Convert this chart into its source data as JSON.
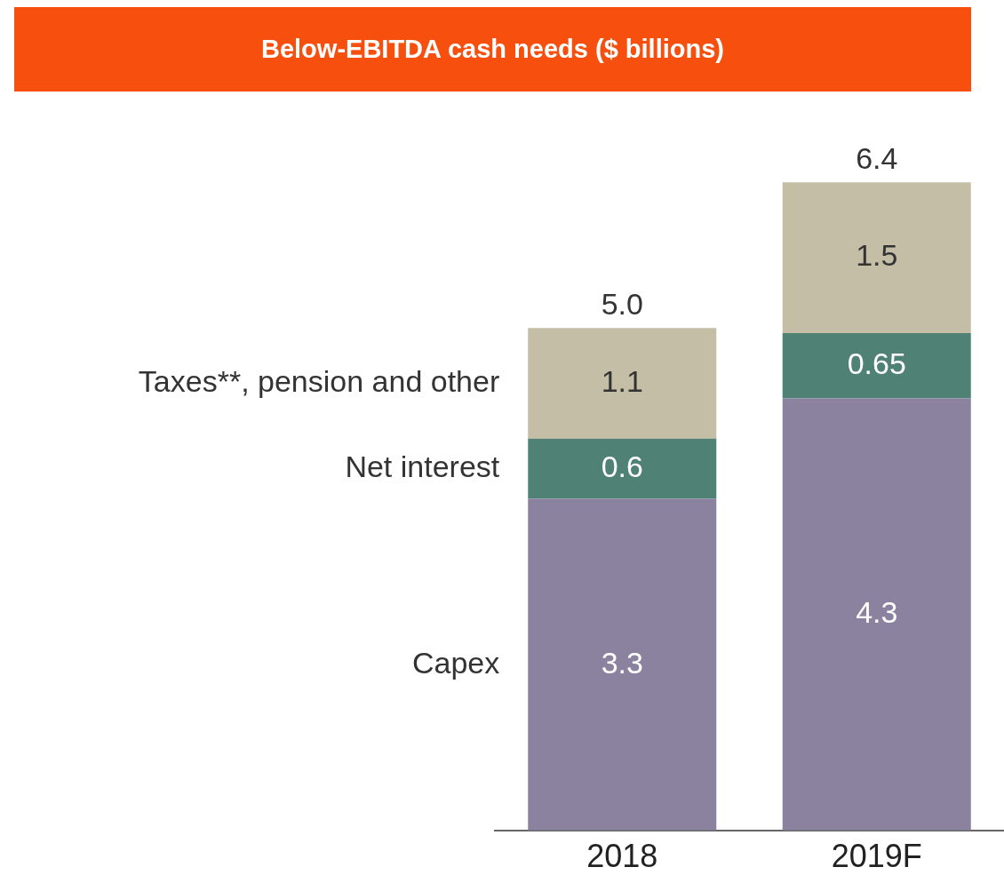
{
  "chart_data": {
    "type": "bar",
    "title": "Below-EBITDA cash needs ($ billions)",
    "categories": [
      "2018",
      "2019F"
    ],
    "stacked": true,
    "data_labels": true,
    "totals": [
      "5.0",
      "6.4"
    ],
    "tick_labels": "x",
    "grid": false,
    "series": [
      {
        "name": "Capex",
        "color": "#8b82a0",
        "values": [
          3.3,
          4.3
        ]
      },
      {
        "name": "Net interest",
        "color": "#4f8275",
        "values": [
          0.6,
          0.65
        ]
      },
      {
        "name": "Taxes**, pension and other",
        "color": "#c4bea6",
        "values": [
          1.1,
          1.5
        ]
      }
    ]
  }
}
